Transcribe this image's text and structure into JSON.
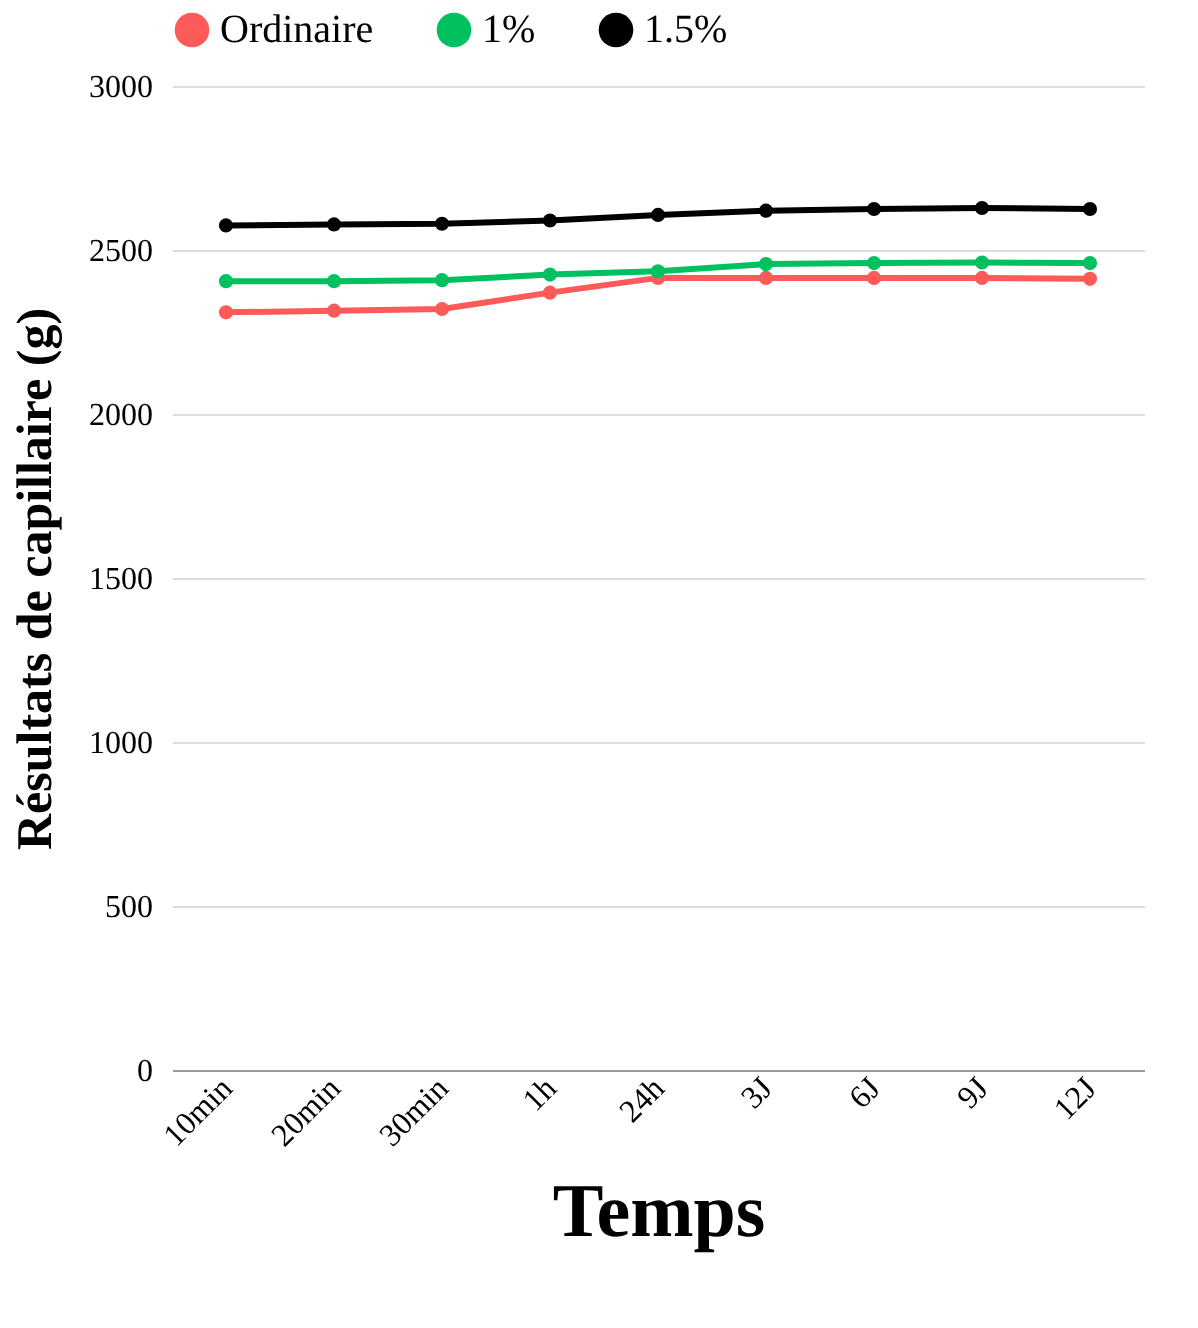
{
  "chart_data": {
    "type": "line",
    "xlabel": "Temps",
    "ylabel": "Résultats de capillaire (g)",
    "categories": [
      "10min",
      "20min",
      "30min",
      "1h",
      "24h",
      "3J",
      "6J",
      "9J",
      "12J"
    ],
    "series": [
      {
        "name": "Ordinaire",
        "color": "#ff5a5a",
        "values": [
          2310,
          2315,
          2320,
          2370,
          2415,
          2415,
          2415,
          2415,
          2412
        ]
      },
      {
        "name": "1%",
        "color": "#00c060",
        "values": [
          2405,
          2405,
          2408,
          2425,
          2435,
          2457,
          2460,
          2462,
          2460
        ]
      },
      {
        "name": "1.5%",
        "color": "#000000",
        "values": [
          2575,
          2578,
          2580,
          2590,
          2607,
          2620,
          2625,
          2628,
          2625
        ]
      }
    ],
    "ylim": [
      0,
      3000
    ],
    "yticks": [
      0,
      500,
      1000,
      1500,
      2000,
      2500,
      3000
    ],
    "grid": "y",
    "legend": "top",
    "marker": "circle",
    "line_style": "solid"
  }
}
